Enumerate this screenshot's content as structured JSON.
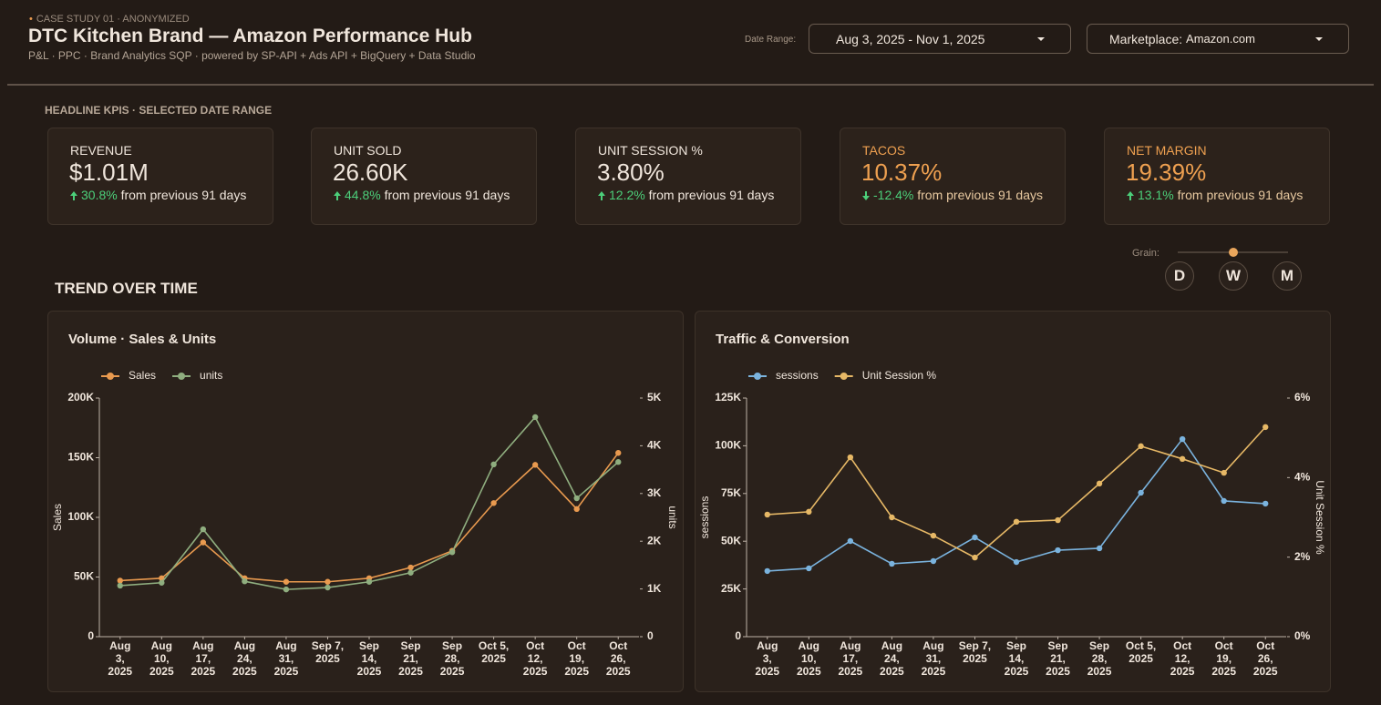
{
  "header": {
    "eyebrow": "CASE STUDY 01 · ANONYMIZED",
    "title": "DTC Kitchen Brand — Amazon Performance Hub",
    "subtitle": "P&L · PPC · Brand Analytics SQP · powered by SP-API + Ads API + BigQuery + Data Studio"
  },
  "filters": {
    "date_label": "Date Range:",
    "date_value": "Aug 3, 2025 - Nov 1, 2025",
    "marketplace_label": "Marketplace:",
    "marketplace_value": "Amazon.com"
  },
  "kpi_section": {
    "title": "HEADLINE KPIS · SELECTED DATE RANGE",
    "cards": [
      {
        "label": "REVENUE",
        "value": "$1.01M",
        "change": "30.8%",
        "note": "from previous 91 days"
      },
      {
        "label": "UNIT SOLD",
        "value": "26.60K",
        "change": "44.8%",
        "note": "from previous 91 days"
      },
      {
        "label": "UNIT SESSION %",
        "value": "3.80%",
        "change": "12.2%",
        "note": "from previous 91 days"
      },
      {
        "label": "TACOS",
        "value": "10.37%",
        "change": "-12.4%",
        "note": "from previous 91 days"
      },
      {
        "label": "NET MARGIN",
        "value": "19.39%",
        "change": "13.1%",
        "note": "from previous 91 days"
      }
    ]
  },
  "grain": {
    "label": "Grain:",
    "options": [
      "D",
      "W",
      "M"
    ]
  },
  "trend_title": "TREND OVER TIME",
  "chart_data": [
    {
      "type": "line",
      "title": "Volume · Sales & Units",
      "categories": [
        "Aug 3, 2025",
        "Aug 10, 2025",
        "Aug 17, 2025",
        "Aug 24, 2025",
        "Aug 31, 2025",
        "Sep 7, 2025",
        "Sep 14, 2025",
        "Sep 21, 2025",
        "Sep 28, 2025",
        "Oct 5, 2025",
        "Oct 12, 2025",
        "Oct 19, 2025",
        "Oct 26, 2025"
      ],
      "series": [
        {
          "name": "Sales",
          "color": "#e99a4f",
          "values": [
            47000,
            49000,
            79000,
            49000,
            46000,
            46000,
            49000,
            58000,
            72000,
            112000,
            144000,
            107000,
            154000
          ]
        },
        {
          "name": "units",
          "color": "#8fae7f",
          "axis": "y2",
          "values": [
            1070,
            1130,
            2250,
            1160,
            990,
            1030,
            1150,
            1340,
            1770,
            3610,
            4600,
            2900,
            3660
          ]
        }
      ],
      "ylabel": "Sales",
      "y2label": "units",
      "ylim": [
        0,
        200000
      ],
      "yticks": [
        0,
        {
          "value": 50000,
          "label": "50K"
        },
        {
          "value": 100000,
          "label": "100K"
        },
        {
          "value": 150000,
          "label": "150K"
        },
        {
          "value": 200000,
          "label": "200K"
        }
      ],
      "y2lim": [
        0,
        5000
      ],
      "y2ticks": [
        0,
        {
          "value": 1000,
          "label": "1K"
        },
        {
          "value": 2000,
          "label": "2K"
        },
        {
          "value": 3000,
          "label": "3K"
        },
        {
          "value": 4000,
          "label": "4K"
        },
        {
          "value": 5000,
          "label": "5K"
        }
      ],
      "legend": "top-left"
    },
    {
      "type": "line",
      "title": "Traffic & Conversion",
      "categories": [
        "Aug 3, 2025",
        "Aug 10, 2025",
        "Aug 17, 2025",
        "Aug 24, 2025",
        "Aug 31, 2025",
        "Sep 7, 2025",
        "Sep 14, 2025",
        "Sep 21, 2025",
        "Sep 28, 2025",
        "Oct 5, 2025",
        "Oct 12, 2025",
        "Oct 19, 2025",
        "Oct 26, 2025"
      ],
      "series": [
        {
          "name": "sessions",
          "color": "#7ab3de",
          "values": [
            34400,
            35800,
            50100,
            38200,
            39600,
            52000,
            39100,
            45300,
            46300,
            75400,
            103500,
            71100,
            69700
          ]
        },
        {
          "name": "Unit Session %",
          "color": "#e6b866",
          "axis": "y2",
          "values": [
            3.07,
            3.14,
            4.51,
            3.0,
            2.54,
            1.99,
            2.89,
            2.93,
            3.85,
            4.79,
            4.47,
            4.12,
            5.27
          ]
        }
      ],
      "ylabel": "sessions",
      "y2label": "Unit Session %",
      "ylim": [
        0,
        125000
      ],
      "yticks": [
        0,
        {
          "value": 25000,
          "label": "25K"
        },
        {
          "value": 50000,
          "label": "50K"
        },
        {
          "value": 75000,
          "label": "75K"
        },
        {
          "value": 100000,
          "label": "100K"
        },
        {
          "value": 125000,
          "label": "125K"
        }
      ],
      "y2lim": [
        0,
        6
      ],
      "y2ticks": [
        {
          "value": 0,
          "label": "0%"
        },
        {
          "value": 2,
          "label": "2%"
        },
        {
          "value": 4,
          "label": "4%"
        },
        {
          "value": 6,
          "label": "6%"
        }
      ],
      "legend": "top-left"
    }
  ]
}
